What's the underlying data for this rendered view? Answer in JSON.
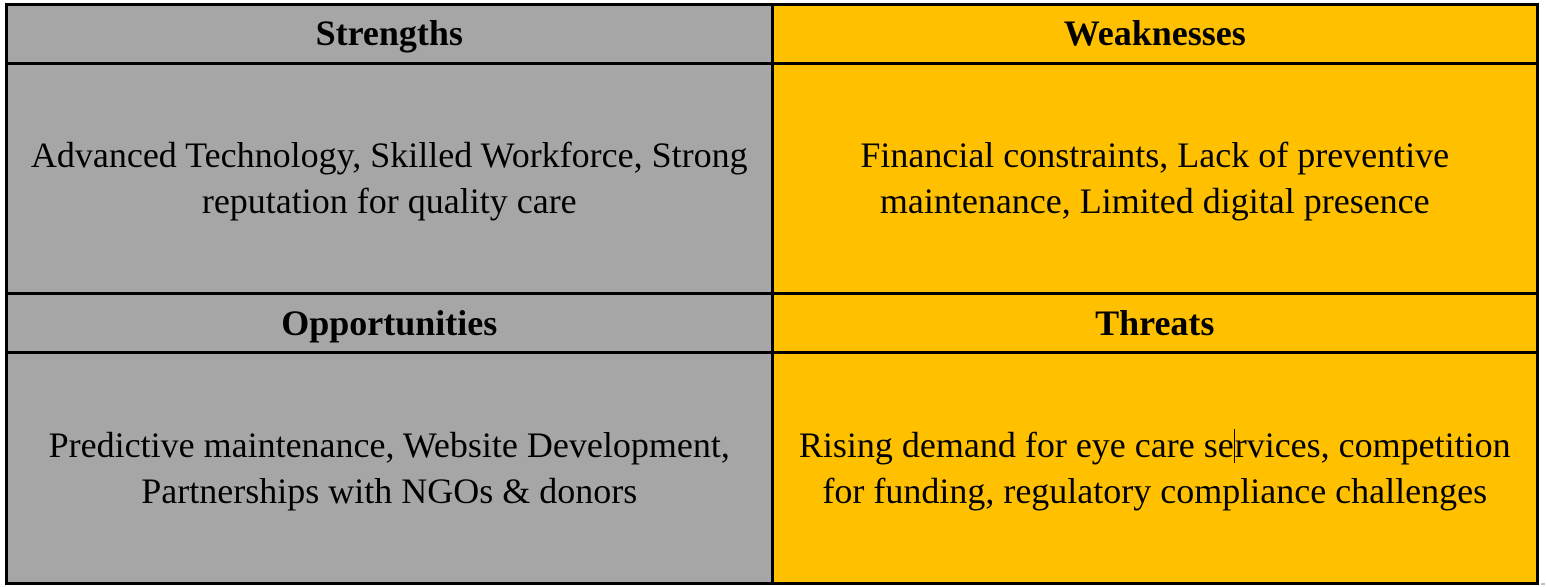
{
  "strengths": {
    "title": "Strengths",
    "text": "Advanced Technology, Skilled Workforce, Strong reputation for quality care"
  },
  "weaknesses": {
    "title": "Weaknesses",
    "text": "Financial constraints, Lack of preventive maintenance, Limited digital presence"
  },
  "opportunities": {
    "title": "Opportunities",
    "text": "Predictive maintenance, Website Development, Partnerships with NGOs & donors"
  },
  "threats": {
    "title": "Threats",
    "text_before_cursor": "Rising demand for eye care se",
    "text_after_cursor": "rvices, competition for funding, regulatory compliance challenges"
  },
  "colors": {
    "left_column_fill": "#a6a6a6",
    "right_column_fill": "#ffc000",
    "border": "#000000"
  }
}
